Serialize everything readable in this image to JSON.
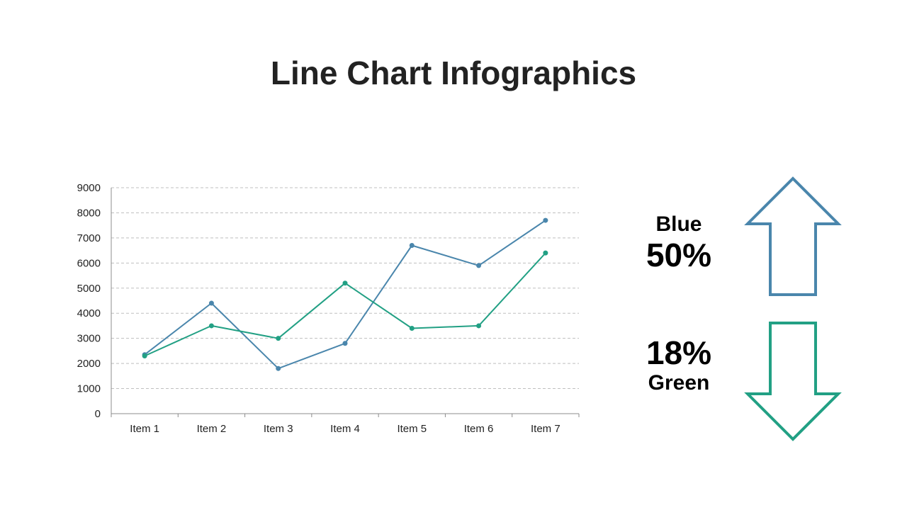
{
  "title": "Line Chart Infographics",
  "colors": {
    "blue": "#4a86ac",
    "green": "#22a084",
    "grid": "#bfbfbf",
    "axis": "#8c8c8c"
  },
  "chart_data": {
    "type": "line",
    "categories": [
      "Item 1",
      "Item 2",
      "Item 3",
      "Item 4",
      "Item 5",
      "Item 6",
      "Item 7"
    ],
    "series": [
      {
        "color": "#4a86ac",
        "values": [
          2350,
          4400,
          1800,
          2800,
          6700,
          5900,
          7700
        ]
      },
      {
        "color": "#22a084",
        "values": [
          2300,
          3500,
          3000,
          5200,
          3400,
          3500,
          6400
        ]
      }
    ],
    "ylim": [
      0,
      9000
    ],
    "yticks": [
      0,
      1000,
      2000,
      3000,
      4000,
      5000,
      6000,
      7000,
      8000,
      9000
    ],
    "grid": true,
    "markers": true
  },
  "stats": {
    "blue": {
      "label": "Blue",
      "value": "50%",
      "direction": "up",
      "icon": "arrow-up-icon"
    },
    "green": {
      "label": "Green",
      "value": "18%",
      "direction": "down",
      "icon": "arrow-down-icon"
    }
  }
}
